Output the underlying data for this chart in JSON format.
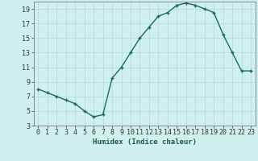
{
  "x": [
    0,
    1,
    2,
    3,
    4,
    5,
    6,
    7,
    8,
    9,
    10,
    11,
    12,
    13,
    14,
    15,
    16,
    17,
    18,
    19,
    20,
    21,
    22,
    23
  ],
  "y": [
    8,
    7.5,
    7,
    6.5,
    6,
    5,
    4.2,
    4.5,
    9.5,
    11,
    13,
    15,
    16.5,
    18,
    18.5,
    19.5,
    19.8,
    19.5,
    19,
    18.5,
    15.5,
    13,
    10.5,
    10.5
  ],
  "line_color": "#1a6b5a",
  "marker_color": "#1a6b5a",
  "bg_color": "#cff0ec",
  "grid_color": "#b8dcd8",
  "axis_color": "#777777",
  "xlabel": "Humidex (Indice chaleur)",
  "xlim": [
    -0.5,
    23.5
  ],
  "ylim": [
    3,
    20
  ],
  "yticks": [
    3,
    5,
    7,
    9,
    11,
    13,
    15,
    17,
    19
  ],
  "xticks": [
    0,
    1,
    2,
    3,
    4,
    5,
    6,
    7,
    8,
    9,
    10,
    11,
    12,
    13,
    14,
    15,
    16,
    17,
    18,
    19,
    20,
    21,
    22,
    23
  ],
  "label_fontsize": 6.5,
  "tick_fontsize": 6.0
}
